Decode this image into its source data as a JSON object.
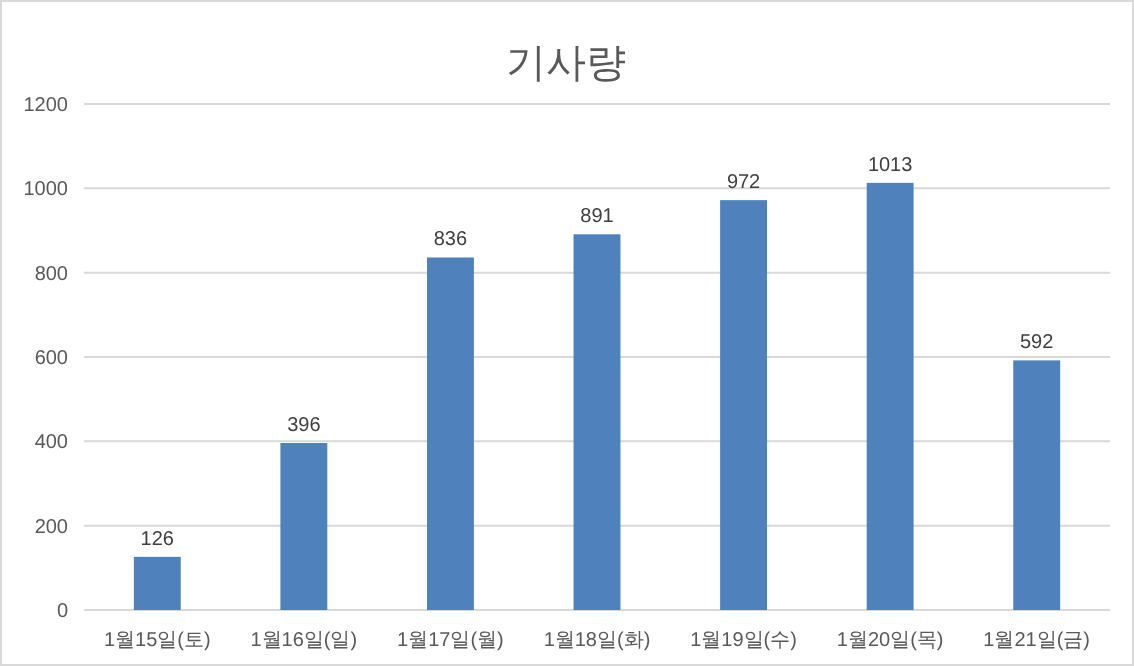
{
  "chart_data": {
    "type": "bar",
    "title": "기사량",
    "categories": [
      "1월15일(토)",
      "1월16일(일)",
      "1월17일(월)",
      "1월18일(화)",
      "1월19일(수)",
      "1월20일(목)",
      "1월21일(금)"
    ],
    "values": [
      126,
      396,
      836,
      891,
      972,
      1013,
      592
    ],
    "color": "#4f81bd",
    "ylim": [
      0,
      1200
    ],
    "yticks": [
      0,
      200,
      400,
      600,
      800,
      1000,
      1200
    ],
    "grid": "y",
    "data_labels": true
  }
}
